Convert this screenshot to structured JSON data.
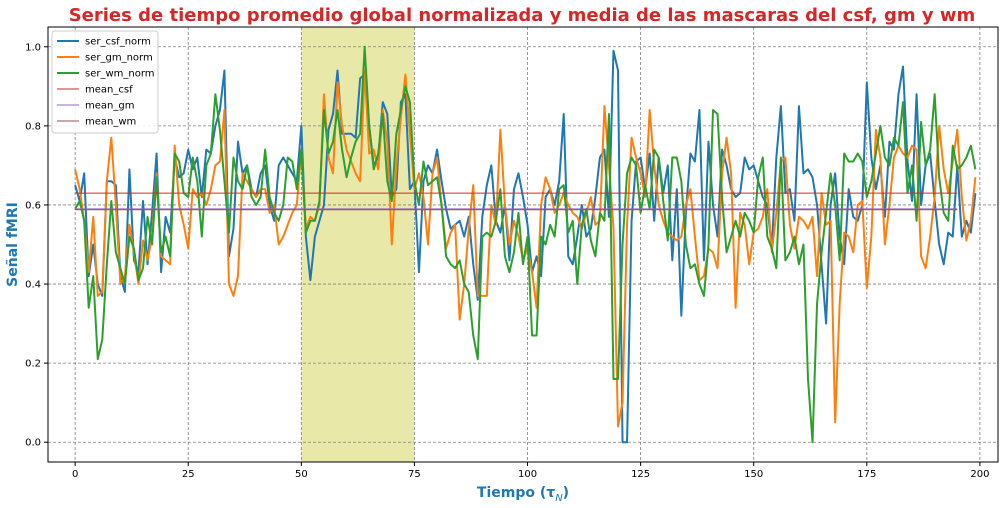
{
  "chart_data": {
    "type": "line",
    "title": "Series de tiempo promedio global normalizada y media de las mascaras del csf, gm y wm",
    "xlabel": "Tiempo (τ",
    "xlabel_sub": "N",
    "xlabel_close": ")",
    "ylabel": "Señal fMRI",
    "xlim": [
      -6,
      204
    ],
    "ylim": [
      -0.05,
      1.05
    ],
    "xticks": [
      0,
      25,
      50,
      75,
      100,
      125,
      150,
      175,
      200
    ],
    "yticks": [
      0.0,
      0.2,
      0.4,
      0.6,
      0.8,
      1.0
    ],
    "xtick_labels": [
      "0",
      "25",
      "50",
      "75",
      "100",
      "125",
      "150",
      "175",
      "200"
    ],
    "ytick_labels": [
      "0.0",
      "0.2",
      "0.4",
      "0.6",
      "0.8",
      "1.0"
    ],
    "grid": true,
    "legend_position": "top-left",
    "highlight_span": {
      "x0": 50,
      "x1": 75,
      "color": "#e8e8a8"
    },
    "series": [
      {
        "name": "ser_csf_norm",
        "color": "#1f77b4",
        "kind": "line",
        "values": [
          0.65,
          0.61,
          0.68,
          0.42,
          0.5,
          0.4,
          0.37,
          0.66,
          0.66,
          0.65,
          0.42,
          0.38,
          0.69,
          0.46,
          0.43,
          0.61,
          0.45,
          0.58,
          0.73,
          0.43,
          0.57,
          0.53,
          0.72,
          0.67,
          0.68,
          0.74,
          0.69,
          0.72,
          0.62,
          0.74,
          0.73,
          0.8,
          0.84,
          0.94,
          0.47,
          0.54,
          0.76,
          0.68,
          0.7,
          0.64,
          0.62,
          0.68,
          0.7,
          0.6,
          0.56,
          0.7,
          0.72,
          0.7,
          0.68,
          0.66,
          0.8,
          0.52,
          0.41,
          0.52,
          0.56,
          0.6,
          0.79,
          0.83,
          0.94,
          0.78,
          0.78,
          0.78,
          0.77,
          0.92,
          0.93,
          0.8,
          0.7,
          0.72,
          0.86,
          0.83,
          0.62,
          0.64,
          0.86,
          0.88,
          0.64,
          0.66,
          0.43,
          0.66,
          0.7,
          0.68,
          0.74,
          0.66,
          0.59,
          0.54,
          0.55,
          0.56,
          0.52,
          0.57,
          0.45,
          0.36,
          0.57,
          0.65,
          0.7,
          0.56,
          0.53,
          0.6,
          0.46,
          0.64,
          0.68,
          0.62,
          0.55,
          0.43,
          0.47,
          0.42,
          0.62,
          0.64,
          0.6,
          0.66,
          0.83,
          0.47,
          0.45,
          0.52,
          0.6,
          0.52,
          0.54,
          0.62,
          0.72,
          0.74,
          0.57,
          0.99,
          0.94,
          0.0,
          0.0,
          0.56,
          0.71,
          0.72,
          0.64,
          0.73,
          0.56,
          0.72,
          0.63,
          0.7,
          0.46,
          0.64,
          0.32,
          0.58,
          0.73,
          0.71,
          0.84,
          0.46,
          0.76,
          0.6,
          0.52,
          0.74,
          0.7,
          0.64,
          0.62,
          0.63,
          0.72,
          0.69,
          0.7,
          0.66,
          0.62,
          0.6,
          0.49,
          0.72,
          0.85,
          0.63,
          0.64,
          0.56,
          0.85,
          0.68,
          0.69,
          0.67,
          0.6,
          0.45,
          0.3,
          0.6,
          0.68,
          0.52,
          0.45,
          0.64,
          0.57,
          0.56,
          0.6,
          0.91,
          0.72,
          0.64,
          0.7,
          0.57,
          0.76,
          0.74,
          0.88,
          0.95,
          0.71,
          0.61,
          0.88,
          0.6,
          0.7,
          0.73,
          0.61,
          0.5,
          0.45,
          0.53,
          0.52,
          0.7,
          0.52,
          0.56,
          0.53,
          0.63
        ]
      },
      {
        "name": "ser_gm_norm",
        "color": "#ff7f0e",
        "kind": "line",
        "values": [
          0.69,
          0.64,
          0.56,
          0.43,
          0.57,
          0.37,
          0.38,
          0.66,
          0.77,
          0.6,
          0.4,
          0.42,
          0.55,
          0.48,
          0.4,
          0.51,
          0.46,
          0.52,
          0.68,
          0.47,
          0.46,
          0.45,
          0.75,
          0.6,
          0.55,
          0.49,
          0.64,
          0.62,
          0.63,
          0.6,
          0.64,
          0.7,
          0.71,
          0.84,
          0.4,
          0.37,
          0.42,
          0.68,
          0.66,
          0.64,
          0.62,
          0.64,
          0.64,
          0.58,
          0.6,
          0.5,
          0.52,
          0.55,
          0.58,
          0.6,
          0.74,
          0.54,
          0.57,
          0.56,
          0.6,
          0.88,
          0.72,
          0.68,
          0.91,
          0.8,
          0.74,
          0.71,
          0.68,
          0.66,
          0.94,
          0.73,
          0.74,
          0.69,
          0.84,
          0.76,
          0.5,
          0.7,
          0.82,
          0.93,
          0.78,
          0.64,
          0.68,
          0.62,
          0.5,
          0.68,
          0.72,
          0.6,
          0.49,
          0.53,
          0.55,
          0.31,
          0.4,
          0.54,
          0.65,
          0.37,
          0.37,
          0.37,
          0.6,
          0.55,
          0.79,
          0.6,
          0.5,
          0.56,
          0.52,
          0.46,
          0.49,
          0.43,
          0.34,
          0.6,
          0.67,
          0.64,
          0.58,
          0.6,
          0.63,
          0.6,
          0.58,
          0.57,
          0.54,
          0.58,
          0.62,
          0.55,
          0.56,
          0.85,
          0.7,
          0.54,
          0.04,
          0.1,
          0.55,
          0.77,
          0.72,
          0.68,
          0.62,
          0.84,
          0.7,
          0.6,
          0.56,
          0.53,
          0.52,
          0.51,
          0.52,
          0.6,
          0.64,
          0.52,
          0.41,
          0.42,
          0.49,
          0.48,
          0.44,
          0.68,
          0.77,
          0.68,
          0.34,
          0.58,
          0.55,
          0.45,
          0.53,
          0.54,
          0.57,
          0.64,
          0.48,
          0.58,
          0.71,
          0.72,
          0.55,
          0.49,
          0.57,
          0.56,
          0.54,
          0.57,
          0.42,
          0.63,
          0.55,
          0.56,
          0.05,
          0.35,
          0.53,
          0.52,
          0.48,
          0.6,
          0.61,
          0.39,
          0.52,
          0.79,
          0.72,
          0.5,
          0.6,
          0.72,
          0.75,
          0.73,
          0.72,
          0.75,
          0.74,
          0.47,
          0.44,
          0.52,
          0.62,
          0.8,
          0.69,
          0.63,
          0.71,
          0.79,
          0.62,
          0.51,
          0.56,
          0.67
        ]
      },
      {
        "name": "ser_wm_norm",
        "color": "#2ca02c",
        "kind": "line",
        "values": [
          0.59,
          0.61,
          0.56,
          0.34,
          0.42,
          0.21,
          0.26,
          0.45,
          0.61,
          0.48,
          0.44,
          0.4,
          0.52,
          0.49,
          0.41,
          0.44,
          0.57,
          0.5,
          0.67,
          0.48,
          0.52,
          0.47,
          0.73,
          0.71,
          0.63,
          0.62,
          0.72,
          0.66,
          0.52,
          0.7,
          0.73,
          0.88,
          0.79,
          0.66,
          0.53,
          0.72,
          0.66,
          0.64,
          0.7,
          0.62,
          0.6,
          0.62,
          0.74,
          0.62,
          0.58,
          0.56,
          0.6,
          0.72,
          0.71,
          0.64,
          0.74,
          0.53,
          0.56,
          0.56,
          0.61,
          0.84,
          0.73,
          0.76,
          0.84,
          0.74,
          0.67,
          0.72,
          0.76,
          0.78,
          1.0,
          0.8,
          0.69,
          0.73,
          0.83,
          0.66,
          0.61,
          0.78,
          0.84,
          0.9,
          0.86,
          0.66,
          0.6,
          0.71,
          0.65,
          0.66,
          0.67,
          0.6,
          0.47,
          0.45,
          0.44,
          0.46,
          0.4,
          0.38,
          0.27,
          0.21,
          0.52,
          0.53,
          0.52,
          0.56,
          0.64,
          0.47,
          0.43,
          0.48,
          0.58,
          0.45,
          0.52,
          0.27,
          0.27,
          0.52,
          0.5,
          0.55,
          0.52,
          0.64,
          0.65,
          0.53,
          0.56,
          0.4,
          0.55,
          0.59,
          0.51,
          0.47,
          0.58,
          0.56,
          0.83,
          0.16,
          0.16,
          0.5,
          0.68,
          0.72,
          0.7,
          0.58,
          0.65,
          0.59,
          0.74,
          0.72,
          0.61,
          0.51,
          0.72,
          0.72,
          0.66,
          0.5,
          0.44,
          0.45,
          0.4,
          0.37,
          0.5,
          0.84,
          0.83,
          0.62,
          0.48,
          0.52,
          0.56,
          0.52,
          0.58,
          0.56,
          0.53,
          0.67,
          0.72,
          0.52,
          0.49,
          0.44,
          0.72,
          0.46,
          0.48,
          0.52,
          0.45,
          0.5,
          0.16,
          0.0,
          0.35,
          0.48,
          0.58,
          0.68,
          0.6,
          0.46,
          0.73,
          0.71,
          0.71,
          0.73,
          0.71,
          0.62,
          0.66,
          0.73,
          0.8,
          0.72,
          0.7,
          0.77,
          0.75,
          0.86,
          0.63,
          0.7,
          0.56,
          0.81,
          0.7,
          0.74,
          0.88,
          0.67,
          0.58,
          0.56,
          0.75,
          0.69,
          0.7,
          0.72,
          0.75,
          0.69
        ]
      },
      {
        "name": "mean_csf",
        "color": "#d62728",
        "kind": "hline",
        "value": 0.63,
        "x0": 0,
        "x1": 195
      },
      {
        "name": "mean_gm",
        "color": "#9467bd",
        "kind": "hline",
        "value": 0.59,
        "x0": 0,
        "x1": 195
      },
      {
        "name": "mean_wm",
        "color": "#8c564b",
        "kind": "hline",
        "value": 0.588,
        "x0": 0,
        "x1": 195
      }
    ]
  }
}
